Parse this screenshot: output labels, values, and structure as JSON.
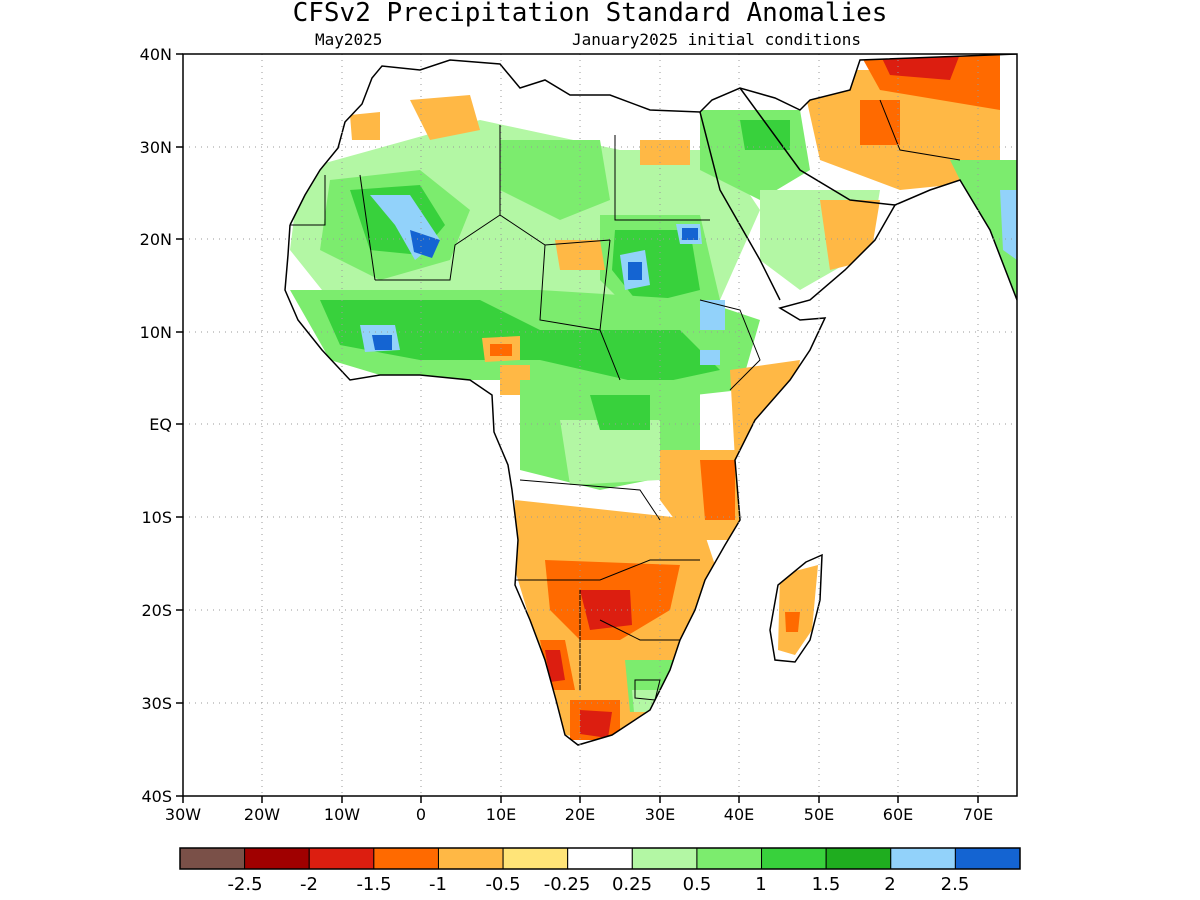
{
  "header": {
    "title": "CFSv2 Precipitation Standard Anomalies",
    "valid_month": "May2025",
    "init_conditions": "January2025 initial conditions"
  },
  "map": {
    "lat_range": [
      -40,
      40
    ],
    "lon_range": [
      -30,
      75
    ],
    "gridlines": "dotted",
    "lat_labels": [
      "40N",
      "30N",
      "20N",
      "10N",
      "EQ",
      "10S",
      "20S",
      "30S",
      "40S"
    ],
    "lon_labels": [
      "30W",
      "20W",
      "10W",
      "0",
      "10E",
      "20E",
      "30E",
      "40E",
      "50E",
      "60E",
      "70E"
    ]
  },
  "colorbar": {
    "colors": [
      "#7a5048",
      "#a00000",
      "#dc1e10",
      "#ff6a00",
      "#ffb845",
      "#ffe478",
      "#ffffff",
      "#b3f7a4",
      "#7cec6e",
      "#38d13c",
      "#1fad1f",
      "#92d2fa",
      "#1464d2"
    ],
    "labels": [
      "-2.5",
      "-2",
      "-1.5",
      "-1",
      "-0.5",
      "-0.25",
      "0.25",
      "0.5",
      "1",
      "1.5",
      "2",
      "2.5"
    ]
  }
}
